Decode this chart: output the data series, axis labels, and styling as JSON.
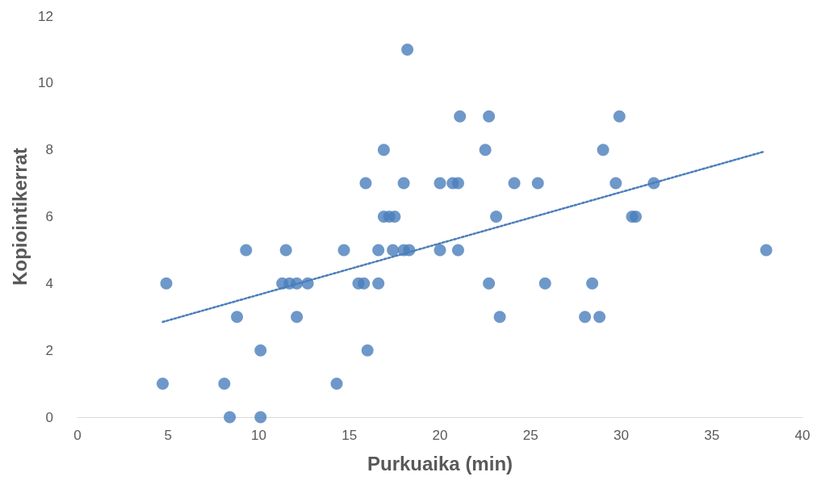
{
  "chart_data": {
    "type": "scatter",
    "xlabel": "Purkuaika (min)",
    "ylabel": "Kopiointikerrat",
    "xlim": [
      0,
      40
    ],
    "xticks": [
      0,
      5,
      10,
      15,
      20,
      25,
      30,
      35,
      40
    ],
    "ylim": [
      0,
      12
    ],
    "yticks": [
      0,
      2,
      4,
      6,
      8,
      10,
      12
    ],
    "grid": false,
    "marker": "circle",
    "series": [
      {
        "color": "#4a7ebb",
        "x": [
          8.4,
          10.1,
          4.7,
          8.1,
          14.3,
          10.1,
          16.0,
          8.8,
          12.1,
          23.3,
          28.0,
          28.8,
          4.9,
          11.3,
          11.7,
          12.1,
          12.7,
          15.5,
          15.8,
          16.6,
          22.7,
          25.8,
          28.4,
          9.3,
          11.5,
          14.7,
          16.6,
          17.4,
          18.0,
          18.3,
          20.0,
          21.0,
          38.0,
          16.9,
          17.2,
          17.5,
          23.1,
          30.6,
          30.8,
          15.9,
          18.0,
          20.0,
          20.7,
          21.0,
          24.1,
          25.4,
          29.7,
          31.8,
          16.9,
          22.5,
          29.0,
          21.1,
          22.7,
          29.9,
          18.2
        ],
        "values": [
          0,
          0,
          1,
          1,
          1,
          2,
          2,
          3,
          3,
          3,
          3,
          3,
          4,
          4,
          4,
          4,
          4,
          4,
          4,
          4,
          4,
          4,
          4,
          5,
          5,
          5,
          5,
          5,
          5,
          5,
          5,
          5,
          5,
          6,
          6,
          6,
          6,
          6,
          6,
          7,
          7,
          7,
          7,
          7,
          7,
          7,
          7,
          7,
          8,
          8,
          8,
          9,
          9,
          9,
          11
        ]
      },
      {
        "type": "line",
        "color": "#4a7ebb",
        "marker": "none",
        "line_style": "dotted",
        "x": [
          4.7,
          37.9
        ],
        "values": [
          2.85,
          7.95
        ]
      }
    ]
  }
}
